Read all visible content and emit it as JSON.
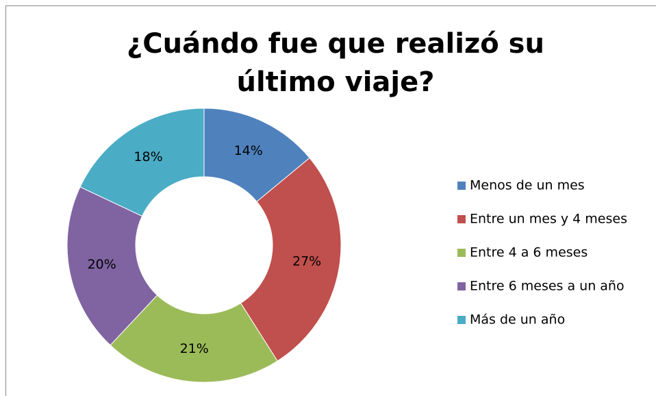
{
  "chart_data": {
    "type": "donut",
    "title": "¿Cuándo fue que realizó su último viaje?",
    "categories": [
      "Menos de un mes",
      "Entre un mes y 4 meses",
      "Entre 4 a 6 meses",
      "Entre 6 meses a un año",
      "Más de un año"
    ],
    "values": [
      14,
      27,
      21,
      20,
      18
    ],
    "value_labels": [
      "14%",
      "27%",
      "21%",
      "20%",
      "18%"
    ],
    "colors": [
      "#4f81bd",
      "#c0504d",
      "#9bbb59",
      "#8064a2",
      "#4bacc6"
    ],
    "legend": "right"
  }
}
